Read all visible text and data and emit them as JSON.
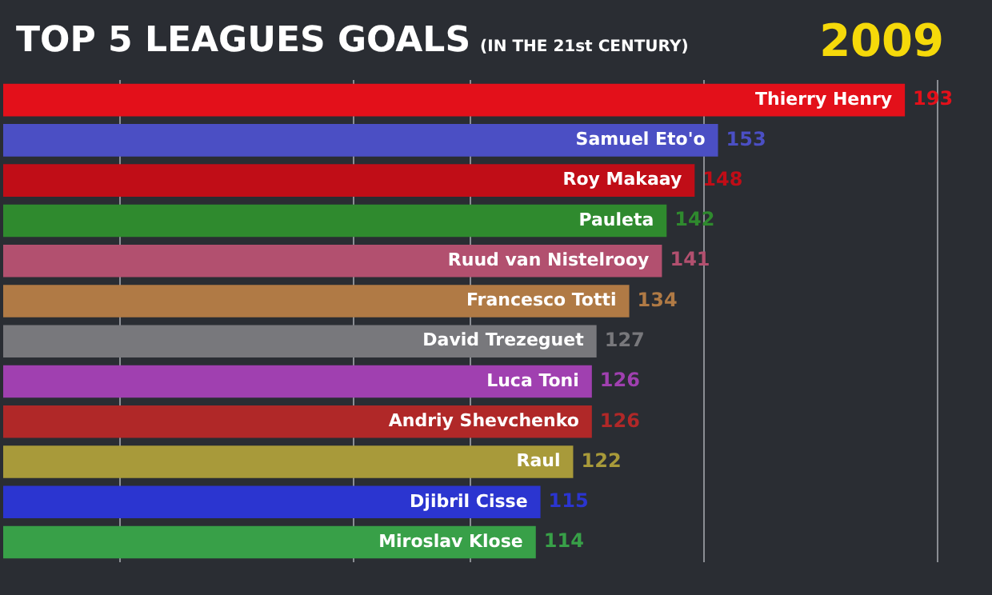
{
  "chart_data": {
    "type": "bar",
    "orientation": "horizontal",
    "title": "TOP 5 LEAGUES GOALS",
    "subtitle": "(IN THE 21st CENTURY)",
    "annotations": [
      "2009"
    ],
    "categories": [
      "Thierry Henry",
      "Samuel Eto'o",
      "Roy Makaay",
      "Pauleta",
      "Ruud van Nistelrooy",
      "Francesco Totti",
      "David Trezeguet",
      "Luca Toni",
      "Andriy Shevchenko",
      "Raul",
      "Djibril Cisse",
      "Miroslav Klose"
    ],
    "values": [
      193,
      153,
      148,
      142,
      141,
      134,
      127,
      126,
      126,
      122,
      115,
      114
    ],
    "colors": [
      "#e3101a",
      "#4b4fc4",
      "#c00d17",
      "#2f8a2e",
      "#b2506f",
      "#b07a45",
      "#78787c",
      "#a040b0",
      "#b02828",
      "#a89a3a",
      "#2b35d0",
      "#38a048"
    ],
    "data_labels": true,
    "xlim": [
      0,
      200
    ],
    "xticks": [
      {
        "value": 25,
        "label": null
      },
      {
        "value": 75,
        "label": null
      },
      {
        "value": 100,
        "label": null
      },
      {
        "value": 150,
        "label": null
      },
      {
        "value": 200,
        "label": null
      }
    ],
    "grid": "x",
    "legend": false
  }
}
